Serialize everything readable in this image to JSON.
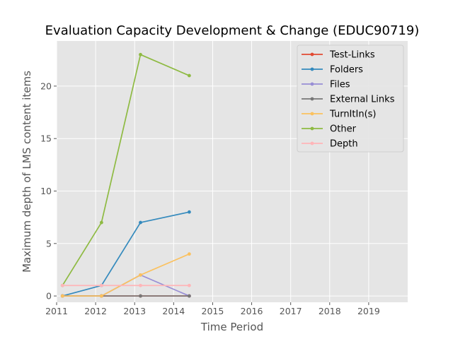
{
  "chart_data": {
    "type": "line",
    "title": "Evaluation Capacity Development & Change (EDUC90719)",
    "xlabel": "Time Period",
    "ylabel": "Maximum depth of LMS content items",
    "xlim": [
      2011,
      2020
    ],
    "ylim": [
      -0.6,
      24.3
    ],
    "xticks": [
      2011,
      2012,
      2013,
      2014,
      2015,
      2016,
      2017,
      2018,
      2019
    ],
    "yticks": [
      0,
      5,
      10,
      15,
      20
    ],
    "grid": true,
    "legend_position": "top-right",
    "x": [
      2011.15,
      2012.15,
      2013.15,
      2014.4
    ],
    "series": [
      {
        "name": "Test-Links",
        "color": "#e24a33",
        "values": [
          0,
          0,
          0,
          0
        ]
      },
      {
        "name": "Folders",
        "color": "#348abd",
        "values": [
          0,
          1,
          7,
          8
        ]
      },
      {
        "name": "Files",
        "color": "#988ed5",
        "values": [
          0,
          0,
          2,
          0
        ]
      },
      {
        "name": "External Links",
        "color": "#777777",
        "values": [
          0,
          0,
          0,
          0
        ]
      },
      {
        "name": "TurnItIn(s)",
        "color": "#fbc15e",
        "values": [
          0,
          0,
          2,
          4
        ]
      },
      {
        "name": "Other",
        "color": "#8eba42",
        "values": [
          1,
          7,
          23,
          21
        ]
      },
      {
        "name": "Depth",
        "color": "#ffb5b8",
        "values": [
          1,
          1,
          1,
          1
        ]
      }
    ]
  }
}
